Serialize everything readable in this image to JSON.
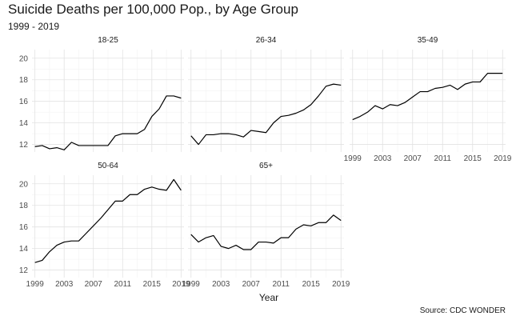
{
  "title": "Suicide Deaths per 100,000 Pop., by Age Group",
  "subtitle": "1999 - 2019",
  "source": "Source: CDC WONDER",
  "chart_data": {
    "type": "line",
    "facet": "small-multiples",
    "xlabel": "Year",
    "ylabel": "",
    "x": [
      1999,
      2000,
      2001,
      2002,
      2003,
      2004,
      2005,
      2006,
      2007,
      2008,
      2009,
      2010,
      2011,
      2012,
      2013,
      2014,
      2015,
      2016,
      2017,
      2018,
      2019
    ],
    "xticks": [
      1999,
      2003,
      2007,
      2011,
      2015,
      2019
    ],
    "yticks": [
      12,
      14,
      16,
      18,
      20
    ],
    "ylim": [
      11.3,
      20.8
    ],
    "xlim": [
      1998.6,
      2019.4
    ],
    "grid": true,
    "line_color": "#000000",
    "panels": [
      {
        "name": "18-25",
        "values": [
          11.8,
          11.9,
          11.6,
          11.7,
          11.5,
          12.2,
          11.9,
          11.9,
          11.9,
          11.9,
          11.9,
          12.8,
          13.0,
          13.0,
          13.0,
          13.4,
          14.6,
          15.3,
          16.5,
          16.5,
          16.3
        ]
      },
      {
        "name": "26-34",
        "values": [
          12.8,
          12.0,
          12.9,
          12.9,
          13.0,
          13.0,
          12.9,
          12.7,
          13.3,
          13.2,
          13.1,
          14.0,
          14.6,
          14.7,
          14.9,
          15.2,
          15.7,
          16.5,
          17.4,
          17.6,
          17.5
        ]
      },
      {
        "name": "35-49",
        "values": [
          14.3,
          14.6,
          15.0,
          15.6,
          15.3,
          15.7,
          15.6,
          15.9,
          16.4,
          16.9,
          16.9,
          17.2,
          17.3,
          17.5,
          17.1,
          17.6,
          17.8,
          17.8,
          18.6,
          18.6,
          18.6
        ]
      },
      {
        "name": "50-64",
        "values": [
          12.7,
          12.9,
          13.7,
          14.3,
          14.6,
          14.7,
          14.7,
          15.4,
          16.1,
          16.8,
          17.6,
          18.4,
          18.4,
          19.0,
          19.0,
          19.5,
          19.7,
          19.5,
          19.4,
          20.4,
          19.4
        ]
      },
      {
        "name": "65+",
        "values": [
          15.3,
          14.6,
          15.0,
          15.2,
          14.2,
          14.0,
          14.3,
          13.9,
          13.9,
          14.6,
          14.6,
          14.5,
          15.0,
          15.0,
          15.8,
          16.2,
          16.1,
          16.4,
          16.4,
          17.1,
          16.6
        ]
      }
    ]
  }
}
